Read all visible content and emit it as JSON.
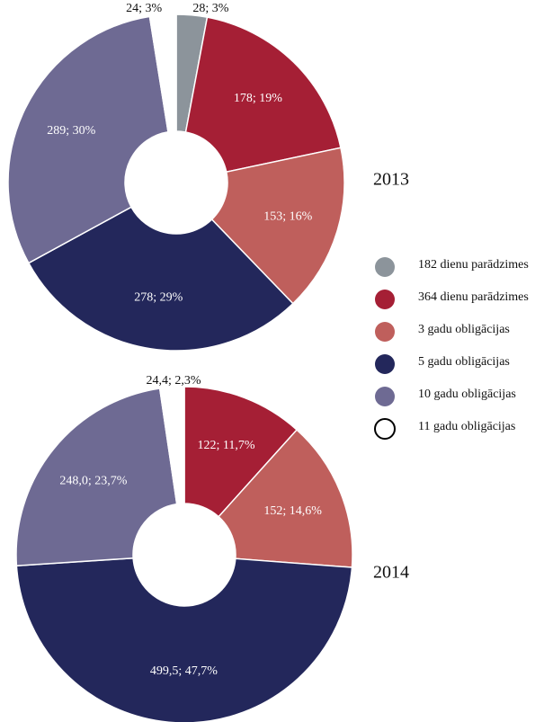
{
  "chart_data": [
    {
      "type": "donut",
      "title": "2013",
      "categories": [
        "182 dienu parādzimes",
        "364 dienu parādzimes",
        "3 gadu obligācijas",
        "5 gadu obligācijas",
        "10 gadu obligācijas",
        "11 gadu obligācijas"
      ],
      "values": [
        28,
        178,
        153,
        278,
        289,
        24
      ],
      "value_labels": [
        "28; 3%",
        "178; 19%",
        "153; 16%",
        "278; 29%",
        "289; 30%",
        "24; 3%"
      ],
      "colors": [
        "#8c949b",
        "#a51f35",
        "#bf5f5c",
        "#23275b",
        "#6e6a93",
        "#ffffff"
      ]
    },
    {
      "type": "donut",
      "title": "2014",
      "categories": [
        "364 dienu parādzimes",
        "3 gadu obligācijas",
        "5 gadu obligācijas",
        "10 gadu obligācijas",
        "11 gadu obligācijas"
      ],
      "values": [
        122,
        152,
        499.5,
        248.0,
        24.4
      ],
      "value_labels": [
        "122; 11,7%",
        "152; 14,6%",
        "499,5; 47,7%",
        "248,0; 23,7%",
        "24,4; 2,3%"
      ],
      "colors": [
        "#a51f35",
        "#bf5f5c",
        "#23275b",
        "#6e6a93",
        "#ffffff"
      ]
    }
  ]
}
